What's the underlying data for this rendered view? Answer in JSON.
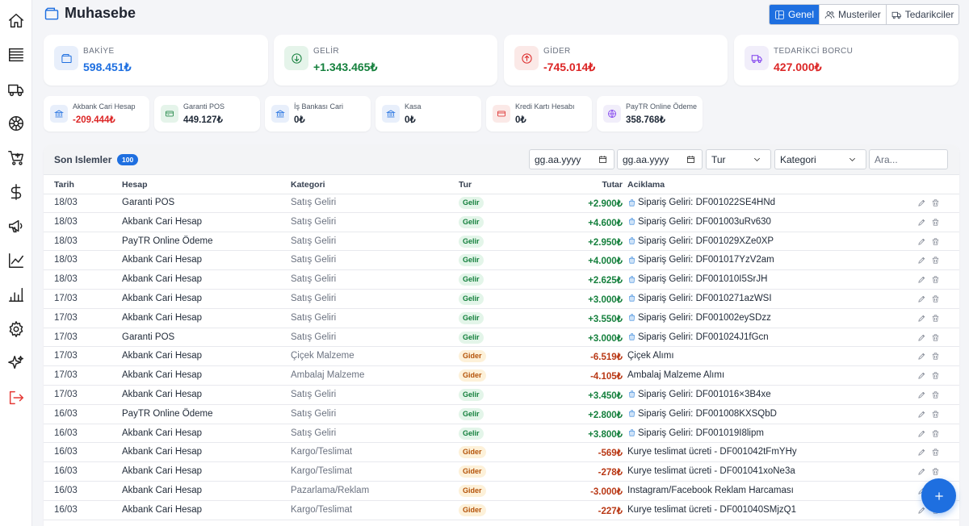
{
  "page": {
    "title": "Muhasebe",
    "tabs": [
      {
        "label": "Genel",
        "icon": "layout-icon",
        "active": true
      },
      {
        "label": "Musteriler",
        "icon": "users-icon",
        "active": false
      },
      {
        "label": "Tedarikciler",
        "icon": "truck-icon",
        "active": false
      }
    ]
  },
  "sidebar": {
    "items": [
      {
        "name": "home",
        "icon": "home-icon"
      },
      {
        "name": "orders",
        "icon": "list-icon"
      },
      {
        "name": "delivery",
        "icon": "truck-icon"
      },
      {
        "name": "flowers",
        "icon": "flower-icon"
      },
      {
        "name": "purchase",
        "icon": "cart-plus-icon"
      },
      {
        "name": "accounting",
        "icon": "dollar-icon"
      },
      {
        "name": "marketing",
        "icon": "megaphone-icon"
      },
      {
        "name": "analytics",
        "icon": "trend-icon"
      },
      {
        "name": "reports",
        "icon": "bar-chart-icon"
      },
      {
        "name": "settings",
        "icon": "gear-icon"
      },
      {
        "name": "ai",
        "icon": "sparkle-icon"
      },
      {
        "name": "logout",
        "icon": "logout-icon"
      }
    ]
  },
  "summary": {
    "balance": {
      "label": "BAKİYE",
      "value": "598.451₺",
      "color": "#1e6fe0"
    },
    "income": {
      "label": "GELİR",
      "value": "+1.343.465₺",
      "color": "#15803d"
    },
    "expense": {
      "label": "GİDER",
      "value": "-745.014₺",
      "color": "#dc2626"
    },
    "supplier_debt": {
      "label": "TEDARİKCİ BORCU",
      "value": "427.000₺",
      "color": "#dc2626"
    }
  },
  "accounts": [
    {
      "label": "Akbank Cari Hesap",
      "value": "-209.444₺",
      "negative": true,
      "icon": "bank-icon"
    },
    {
      "label": "Garanti POS",
      "value": "449.127₺",
      "negative": false,
      "icon": "pos-icon"
    },
    {
      "label": "İş Bankası Cari",
      "value": "0₺",
      "negative": false,
      "icon": "bank-icon"
    },
    {
      "label": "Kasa",
      "value": "0₺",
      "negative": false,
      "icon": "bank-icon"
    },
    {
      "label": "Kredi Kartı Hesabı",
      "value": "0₺",
      "negative": false,
      "icon": "credit-card-icon"
    },
    {
      "label": "PayTR Online Ödeme",
      "value": "358.768₺",
      "negative": false,
      "icon": "globe-icon"
    }
  ],
  "transactions": {
    "title": "Son Islemler",
    "count": "100",
    "filters": {
      "date_from_placeholder": "gg.aa.yyyy",
      "date_to_placeholder": "gg.aa.yyyy",
      "type_value": "Tur",
      "category_value": "Kategori",
      "search_placeholder": "Ara..."
    },
    "columns": {
      "date": "Tarih",
      "account": "Hesap",
      "category": "Kategori",
      "type": "Tur",
      "amount": "Tutar",
      "description": "Aciklama"
    },
    "rows": [
      {
        "date": "18/03",
        "account": "Garanti POS",
        "category": "Satış Geliri",
        "type": "Gelir",
        "amount": "+2.900₺",
        "description": "Sipariş Geliri: DF001022SE4HNd"
      },
      {
        "date": "18/03",
        "account": "Akbank Cari Hesap",
        "category": "Satış Geliri",
        "type": "Gelir",
        "amount": "+4.600₺",
        "description": "Sipariş Geliri: DF001003uRv630"
      },
      {
        "date": "18/03",
        "account": "PayTR Online Ödeme",
        "category": "Satış Geliri",
        "type": "Gelir",
        "amount": "+2.950₺",
        "description": "Sipariş Geliri: DF001029XZe0XP"
      },
      {
        "date": "18/03",
        "account": "Akbank Cari Hesap",
        "category": "Satış Geliri",
        "type": "Gelir",
        "amount": "+4.000₺",
        "description": "Sipariş Geliri: DF001017YzV2am"
      },
      {
        "date": "18/03",
        "account": "Akbank Cari Hesap",
        "category": "Satış Geliri",
        "type": "Gelir",
        "amount": "+2.625₺",
        "description": "Sipariş Geliri: DF001010I5SrJH"
      },
      {
        "date": "17/03",
        "account": "Akbank Cari Hesap",
        "category": "Satış Geliri",
        "type": "Gelir",
        "amount": "+3.000₺",
        "description": "Sipariş Geliri: DF0010271azWSI"
      },
      {
        "date": "17/03",
        "account": "Akbank Cari Hesap",
        "category": "Satış Geliri",
        "type": "Gelir",
        "amount": "+3.550₺",
        "description": "Sipariş Geliri: DF001002eySDzz"
      },
      {
        "date": "17/03",
        "account": "Garanti POS",
        "category": "Satış Geliri",
        "type": "Gelir",
        "amount": "+3.000₺",
        "description": "Sipariş Geliri: DF001024J1fGcn"
      },
      {
        "date": "17/03",
        "account": "Akbank Cari Hesap",
        "category": "Çiçek Malzeme",
        "type": "Gider",
        "amount": "-6.519₺",
        "description": "Çiçek Alımı"
      },
      {
        "date": "17/03",
        "account": "Akbank Cari Hesap",
        "category": "Ambalaj Malzeme",
        "type": "Gider",
        "amount": "-4.105₺",
        "description": "Ambalaj Malzeme Alımı"
      },
      {
        "date": "17/03",
        "account": "Akbank Cari Hesap",
        "category": "Satış Geliri",
        "type": "Gelir",
        "amount": "+3.450₺",
        "description": "Sipariş Geliri: DF001016×3B4xe"
      },
      {
        "date": "16/03",
        "account": "PayTR Online Ödeme",
        "category": "Satış Geliri",
        "type": "Gelir",
        "amount": "+2.800₺",
        "description": "Sipariş Geliri: DF001008KXSQbD"
      },
      {
        "date": "16/03",
        "account": "Akbank Cari Hesap",
        "category": "Satış Geliri",
        "type": "Gelir",
        "amount": "+3.800₺",
        "description": "Sipariş Geliri: DF001019I8lipm"
      },
      {
        "date": "16/03",
        "account": "Akbank Cari Hesap",
        "category": "Kargo/Teslimat",
        "type": "Gider",
        "amount": "-569₺",
        "description": "Kurye teslimat ücreti - DF001042tFmYHy"
      },
      {
        "date": "16/03",
        "account": "Akbank Cari Hesap",
        "category": "Kargo/Teslimat",
        "type": "Gider",
        "amount": "-278₺",
        "description": "Kurye teslimat ücreti - DF001041xoNe3a"
      },
      {
        "date": "16/03",
        "account": "Akbank Cari Hesap",
        "category": "Pazarlama/Reklam",
        "type": "Gider",
        "amount": "-3.000₺",
        "description": "Instagram/Facebook Reklam Harcaması"
      },
      {
        "date": "16/03",
        "account": "Akbank Cari Hesap",
        "category": "Kargo/Teslimat",
        "type": "Gider",
        "amount": "-227₺",
        "description": "Kurye teslimat ücreti - DF001040SMjzQ1"
      }
    ]
  },
  "colors": {
    "accent": "#1e6fe0",
    "income": "#15803d",
    "expense": "#b93815",
    "negative": "#dc2626"
  }
}
